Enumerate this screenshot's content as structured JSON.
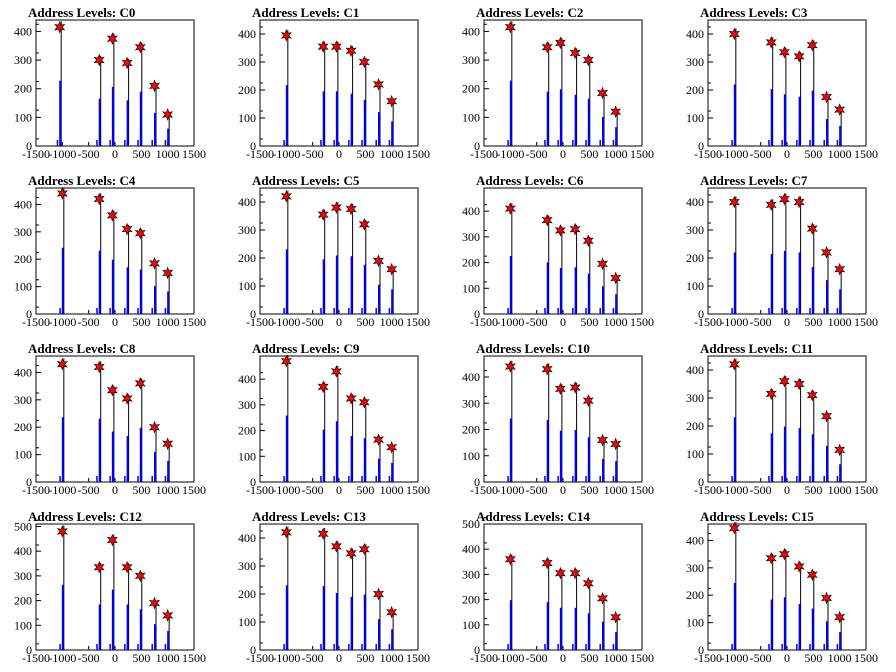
{
  "chart_data": {
    "type": "bar",
    "layout": "4x4 grid of histograms",
    "colors": {
      "histogram": "#0000ff",
      "outline": "#000000",
      "marker": "#ff0000",
      "frame": "#000000"
    },
    "xlim": [
      -1500,
      1500
    ],
    "x_tick_labels": [
      "-1500",
      "-1000",
      "-500",
      "0",
      "500",
      "1000",
      "1500"
    ],
    "panels": [
      {
        "title": "Address Levels: C0",
        "ylim": [
          0,
          440
        ],
        "y_ticks": [
          0,
          100,
          200,
          300,
          400
        ],
        "peaks": [
          {
            "x": -1050,
            "y": 415
          },
          {
            "x": -300,
            "y": 300
          },
          {
            "x": -50,
            "y": 375
          },
          {
            "x": 230,
            "y": 290
          },
          {
            "x": 480,
            "y": 345
          },
          {
            "x": 750,
            "y": 210
          },
          {
            "x": 1000,
            "y": 110
          }
        ]
      },
      {
        "title": "Address Levels: C1",
        "ylim": [
          0,
          450
        ],
        "y_ticks": [
          0,
          100,
          200,
          300,
          400
        ],
        "peaks": [
          {
            "x": -1000,
            "y": 395
          },
          {
            "x": -300,
            "y": 355
          },
          {
            "x": -50,
            "y": 355
          },
          {
            "x": 230,
            "y": 340
          },
          {
            "x": 480,
            "y": 300
          },
          {
            "x": 750,
            "y": 220
          },
          {
            "x": 1000,
            "y": 160
          }
        ]
      },
      {
        "title": "Address Levels: C2",
        "ylim": [
          0,
          440
        ],
        "y_ticks": [
          0,
          100,
          200,
          300,
          400
        ],
        "peaks": [
          {
            "x": -1000,
            "y": 415
          },
          {
            "x": -300,
            "y": 345
          },
          {
            "x": -50,
            "y": 360
          },
          {
            "x": 230,
            "y": 325
          },
          {
            "x": 480,
            "y": 300
          },
          {
            "x": 750,
            "y": 185
          },
          {
            "x": 1000,
            "y": 120
          }
        ]
      },
      {
        "title": "Address Levels: C3",
        "ylim": [
          0,
          450
        ],
        "y_ticks": [
          0,
          100,
          200,
          300,
          400
        ],
        "peaks": [
          {
            "x": -1000,
            "y": 400
          },
          {
            "x": -300,
            "y": 370
          },
          {
            "x": -50,
            "y": 335
          },
          {
            "x": 230,
            "y": 320
          },
          {
            "x": 480,
            "y": 360
          },
          {
            "x": 750,
            "y": 175
          },
          {
            "x": 1000,
            "y": 130
          }
        ]
      },
      {
        "title": "Address Levels: C4",
        "ylim": [
          0,
          460
        ],
        "y_ticks": [
          0,
          100,
          200,
          300,
          400
        ],
        "peaks": [
          {
            "x": -1000,
            "y": 440
          },
          {
            "x": -300,
            "y": 420
          },
          {
            "x": -50,
            "y": 360
          },
          {
            "x": 230,
            "y": 310
          },
          {
            "x": 480,
            "y": 295
          },
          {
            "x": 750,
            "y": 185
          },
          {
            "x": 1000,
            "y": 150
          }
        ]
      },
      {
        "title": "Address Levels: C5",
        "ylim": [
          0,
          450
        ],
        "y_ticks": [
          0,
          100,
          200,
          300,
          400
        ],
        "peaks": [
          {
            "x": -1000,
            "y": 420
          },
          {
            "x": -300,
            "y": 355
          },
          {
            "x": -50,
            "y": 380
          },
          {
            "x": 230,
            "y": 375
          },
          {
            "x": 480,
            "y": 320
          },
          {
            "x": 750,
            "y": 190
          },
          {
            "x": 1000,
            "y": 160
          }
        ]
      },
      {
        "title": "Address Levels: C6",
        "ylim": [
          0,
          490
        ],
        "y_ticks": [
          0,
          100,
          200,
          300,
          400
        ],
        "peaks": [
          {
            "x": -1000,
            "y": 410
          },
          {
            "x": -300,
            "y": 365
          },
          {
            "x": -50,
            "y": 325
          },
          {
            "x": 230,
            "y": 330
          },
          {
            "x": 480,
            "y": 285
          },
          {
            "x": 750,
            "y": 195
          },
          {
            "x": 1000,
            "y": 140
          }
        ]
      },
      {
        "title": "Address Levels: C7",
        "ylim": [
          0,
          450
        ],
        "y_ticks": [
          0,
          100,
          200,
          300,
          400
        ],
        "peaks": [
          {
            "x": -1000,
            "y": 400
          },
          {
            "x": -300,
            "y": 390
          },
          {
            "x": -50,
            "y": 410
          },
          {
            "x": 230,
            "y": 400
          },
          {
            "x": 480,
            "y": 305
          },
          {
            "x": 750,
            "y": 220
          },
          {
            "x": 1000,
            "y": 160
          }
        ]
      },
      {
        "title": "Address Levels: C8",
        "ylim": [
          0,
          460
        ],
        "y_ticks": [
          0,
          100,
          200,
          300,
          400
        ],
        "peaks": [
          {
            "x": -1000,
            "y": 430
          },
          {
            "x": -300,
            "y": 420
          },
          {
            "x": -50,
            "y": 335
          },
          {
            "x": 230,
            "y": 305
          },
          {
            "x": 480,
            "y": 360
          },
          {
            "x": 750,
            "y": 200
          },
          {
            "x": 1000,
            "y": 140
          }
        ]
      },
      {
        "title": "Address Levels: C9",
        "ylim": [
          0,
          490
        ],
        "y_ticks": [
          0,
          100,
          200,
          300,
          400
        ],
        "peaks": [
          {
            "x": -1000,
            "y": 470
          },
          {
            "x": -300,
            "y": 370
          },
          {
            "x": -50,
            "y": 430
          },
          {
            "x": 230,
            "y": 325
          },
          {
            "x": 480,
            "y": 310
          },
          {
            "x": 750,
            "y": 165
          },
          {
            "x": 1000,
            "y": 135
          }
        ]
      },
      {
        "title": "Address Levels: C10",
        "ylim": [
          0,
          480
        ],
        "y_ticks": [
          0,
          100,
          200,
          300,
          400
        ],
        "peaks": [
          {
            "x": -1000,
            "y": 440
          },
          {
            "x": -300,
            "y": 430
          },
          {
            "x": -50,
            "y": 355
          },
          {
            "x": 230,
            "y": 360
          },
          {
            "x": 480,
            "y": 310
          },
          {
            "x": 750,
            "y": 160
          },
          {
            "x": 1000,
            "y": 145
          }
        ]
      },
      {
        "title": "Address Levels: C11",
        "ylim": [
          0,
          450
        ],
        "y_ticks": [
          0,
          100,
          200,
          300,
          400
        ],
        "peaks": [
          {
            "x": -1000,
            "y": 420
          },
          {
            "x": -300,
            "y": 315
          },
          {
            "x": -50,
            "y": 360
          },
          {
            "x": 230,
            "y": 350
          },
          {
            "x": 480,
            "y": 310
          },
          {
            "x": 750,
            "y": 235
          },
          {
            "x": 1000,
            "y": 115
          }
        ]
      },
      {
        "title": "Address Levels: C12",
        "ylim": [
          0,
          510
        ],
        "y_ticks": [
          0,
          100,
          200,
          300,
          400,
          500
        ],
        "peaks": [
          {
            "x": -1000,
            "y": 480
          },
          {
            "x": -300,
            "y": 335
          },
          {
            "x": -50,
            "y": 445
          },
          {
            "x": 230,
            "y": 335
          },
          {
            "x": 480,
            "y": 300
          },
          {
            "x": 750,
            "y": 190
          },
          {
            "x": 1000,
            "y": 140
          }
        ]
      },
      {
        "title": "Address Levels: C13",
        "ylim": [
          0,
          450
        ],
        "y_ticks": [
          0,
          100,
          200,
          300,
          400
        ],
        "peaks": [
          {
            "x": -1000,
            "y": 420
          },
          {
            "x": -300,
            "y": 415
          },
          {
            "x": -50,
            "y": 370
          },
          {
            "x": 230,
            "y": 345
          },
          {
            "x": 480,
            "y": 360
          },
          {
            "x": 750,
            "y": 200
          },
          {
            "x": 1000,
            "y": 135
          }
        ]
      },
      {
        "title": "Address Levels: C14",
        "ylim": [
          0,
          500
        ],
        "y_ticks": [
          0,
          100,
          200,
          300,
          400,
          500
        ],
        "peaks": [
          {
            "x": -1000,
            "y": 360
          },
          {
            "x": -300,
            "y": 345
          },
          {
            "x": -50,
            "y": 305
          },
          {
            "x": 230,
            "y": 305
          },
          {
            "x": 480,
            "y": 265
          },
          {
            "x": 750,
            "y": 205
          },
          {
            "x": 1000,
            "y": 130
          }
        ]
      },
      {
        "title": "Address Levels: C15",
        "ylim": [
          0,
          460
        ],
        "y_ticks": [
          0,
          100,
          200,
          300,
          400
        ],
        "peaks": [
          {
            "x": -1000,
            "y": 445
          },
          {
            "x": -300,
            "y": 335
          },
          {
            "x": -50,
            "y": 350
          },
          {
            "x": 230,
            "y": 305
          },
          {
            "x": 480,
            "y": 275
          },
          {
            "x": 750,
            "y": 190
          },
          {
            "x": 1000,
            "y": 120
          }
        ]
      }
    ]
  }
}
